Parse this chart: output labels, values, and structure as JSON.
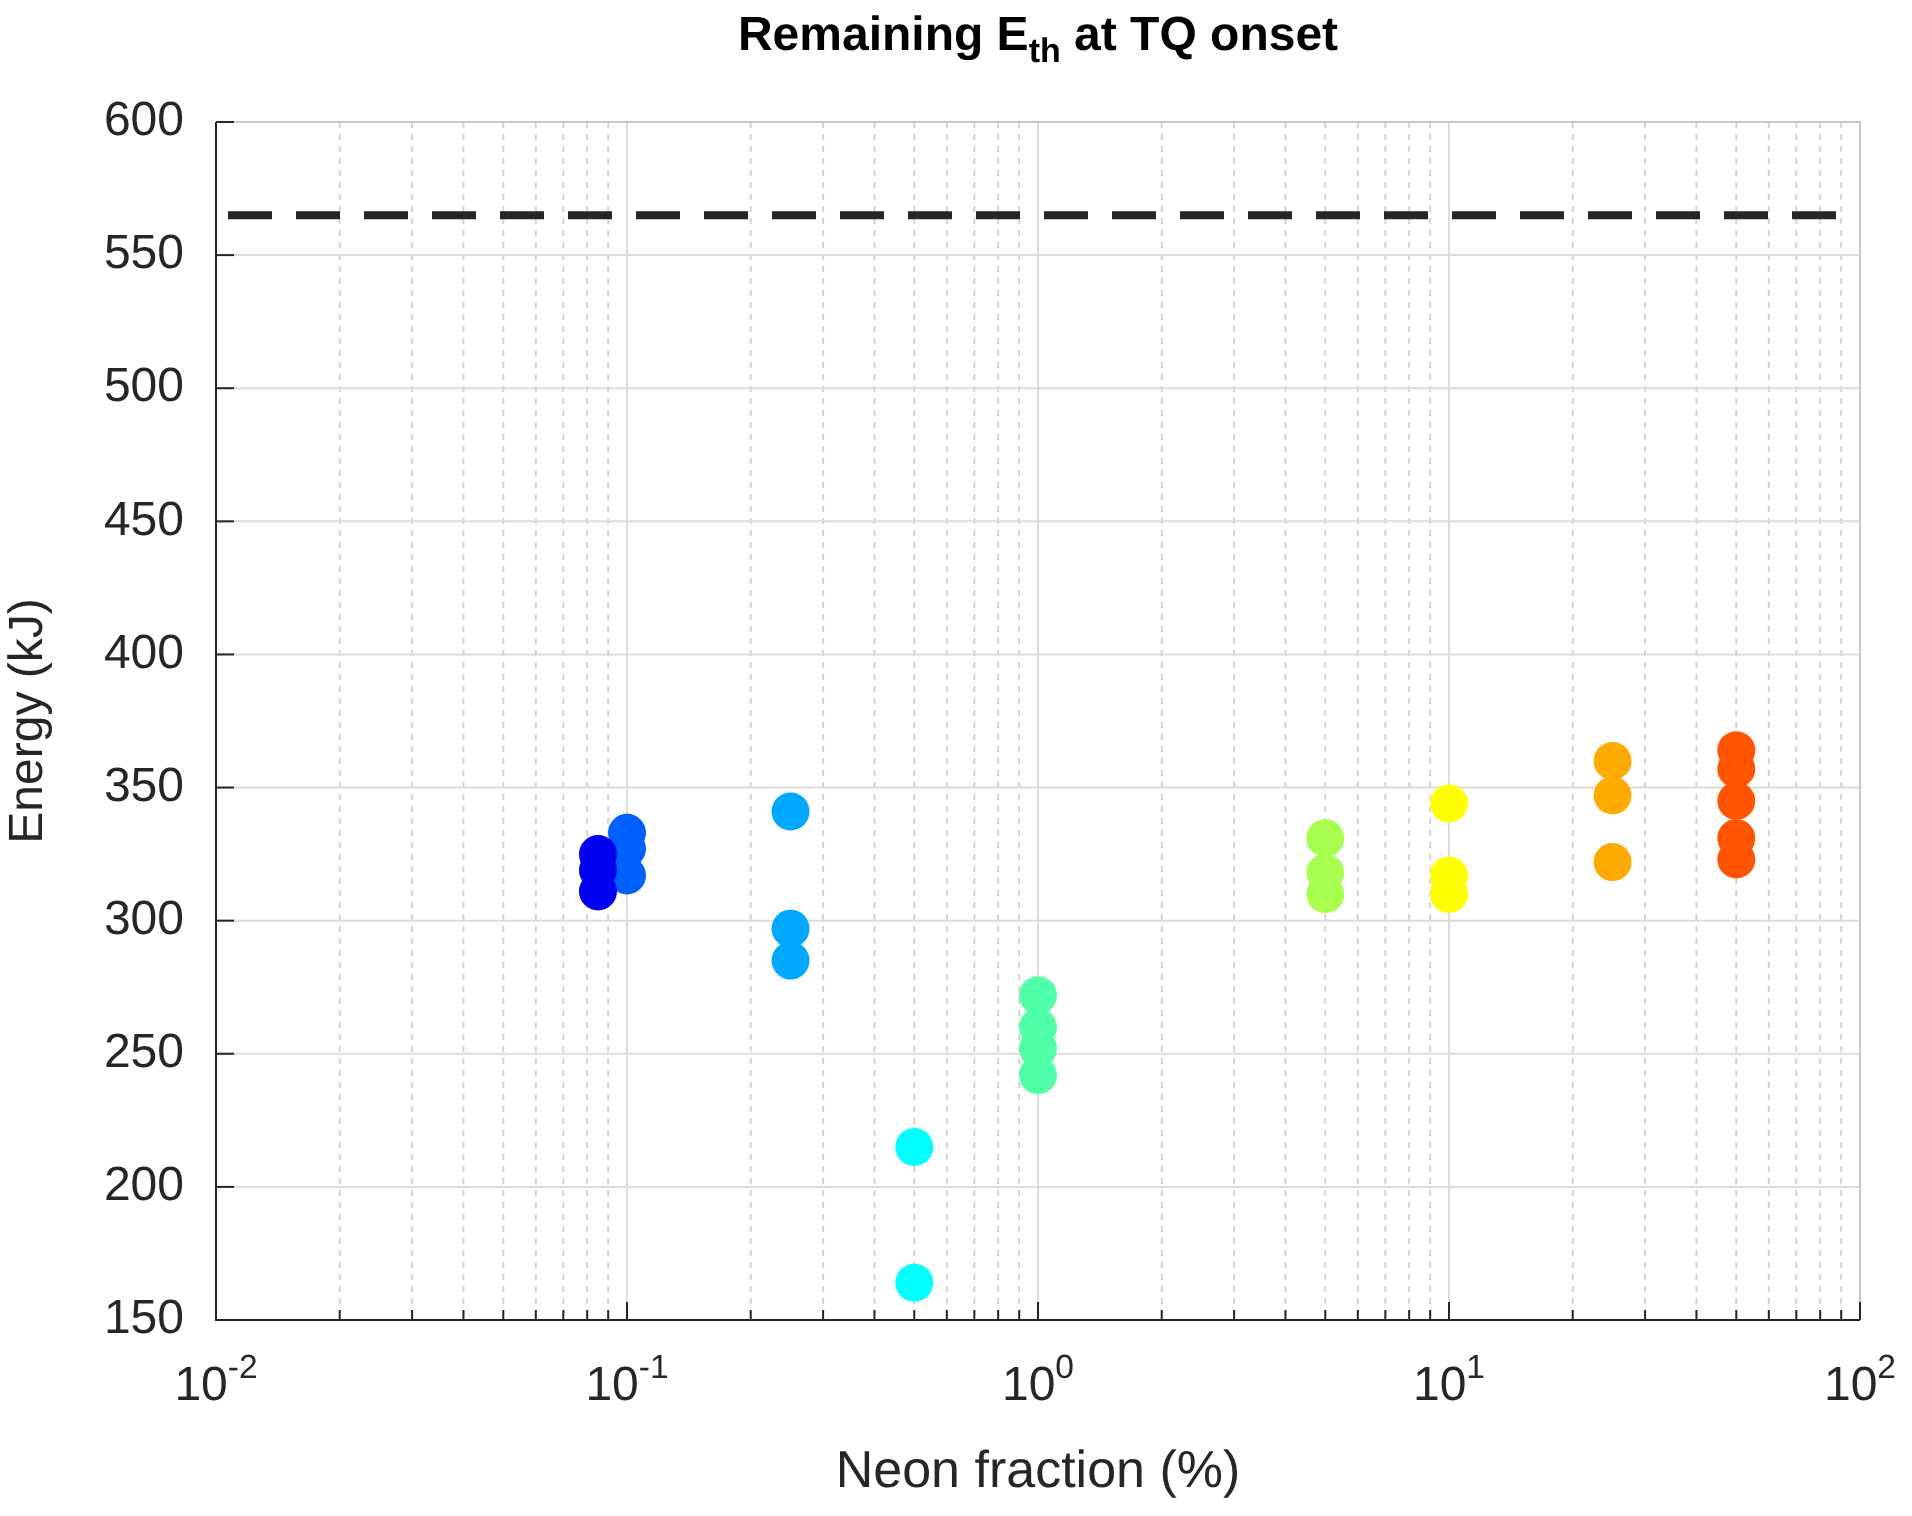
{
  "chart_data": {
    "type": "scatter",
    "title": "Remaining E$_{th}$ at TQ onset",
    "xlabel": "Neon fraction (%)",
    "ylabel": "Energy (kJ)",
    "log": "x",
    "grid": true,
    "marker": "circle",
    "legend": false,
    "xlim": [
      0.01,
      100
    ],
    "ylim": [
      150,
      600
    ],
    "xticks": [
      {
        "value": 0.01,
        "label": "10$^{-2}$"
      },
      {
        "value": 0.02,
        "label": null
      },
      {
        "value": 0.03,
        "label": null
      },
      {
        "value": 0.04,
        "label": null
      },
      {
        "value": 0.05,
        "label": null
      },
      {
        "value": 0.06,
        "label": null
      },
      {
        "value": 0.07,
        "label": null
      },
      {
        "value": 0.08,
        "label": null
      },
      {
        "value": 0.09,
        "label": null
      },
      {
        "value": 0.1,
        "label": "10$^{-1}$"
      },
      {
        "value": 0.2,
        "label": null
      },
      {
        "value": 0.3,
        "label": null
      },
      {
        "value": 0.4,
        "label": null
      },
      {
        "value": 0.5,
        "label": null
      },
      {
        "value": 0.6,
        "label": null
      },
      {
        "value": 0.7,
        "label": null
      },
      {
        "value": 0.8,
        "label": null
      },
      {
        "value": 0.9,
        "label": null
      },
      {
        "value": 1,
        "label": "10$^{0}$"
      },
      {
        "value": 2,
        "label": null
      },
      {
        "value": 3,
        "label": null
      },
      {
        "value": 4,
        "label": null
      },
      {
        "value": 5,
        "label": null
      },
      {
        "value": 6,
        "label": null
      },
      {
        "value": 7,
        "label": null
      },
      {
        "value": 8,
        "label": null
      },
      {
        "value": 9,
        "label": null
      },
      {
        "value": 10,
        "label": "10$^{1}$"
      },
      {
        "value": 20,
        "label": null
      },
      {
        "value": 30,
        "label": null
      },
      {
        "value": 40,
        "label": null
      },
      {
        "value": 50,
        "label": null
      },
      {
        "value": 60,
        "label": null
      },
      {
        "value": 70,
        "label": null
      },
      {
        "value": 80,
        "label": null
      },
      {
        "value": 90,
        "label": null
      },
      {
        "value": 100,
        "label": "10$^{2}$"
      }
    ],
    "yticks": [
      150,
      200,
      250,
      300,
      350,
      400,
      450,
      500,
      550,
      600
    ],
    "ref_lines": [
      {
        "axis": "y",
        "value": 565,
        "color": "#262626",
        "line_style": "dashed"
      }
    ],
    "series": [
      {
        "color": "#0000f0",
        "x": [
          0.085,
          0.085,
          0.085
        ],
        "values": [
          325,
          319,
          311
        ]
      },
      {
        "color": "#0060ff",
        "x": [
          0.1,
          0.1,
          0.1
        ],
        "values": [
          333,
          327,
          317
        ]
      },
      {
        "color": "#00a8ff",
        "x": [
          0.25,
          0.25,
          0.25
        ],
        "values": [
          341,
          297,
          285
        ]
      },
      {
        "color": "#00ffff",
        "x": [
          0.5,
          0.5
        ],
        "values": [
          215,
          164
        ]
      },
      {
        "color": "#50ffa8",
        "x": [
          1,
          1,
          1,
          1
        ],
        "values": [
          272,
          260,
          252,
          242
        ]
      },
      {
        "color": "#a8ff50",
        "x": [
          5,
          5,
          5
        ],
        "values": [
          331,
          318,
          310
        ]
      },
      {
        "color": "#ffff00",
        "x": [
          10,
          10,
          10
        ],
        "values": [
          344,
          317,
          310
        ]
      },
      {
        "color": "#ffaa00",
        "x": [
          25,
          25,
          25
        ],
        "values": [
          360,
          347,
          322
        ]
      },
      {
        "color": "#ff5500",
        "x": [
          50,
          50,
          50,
          50,
          50
        ],
        "values": [
          364,
          357,
          345,
          331,
          323
        ]
      }
    ]
  }
}
